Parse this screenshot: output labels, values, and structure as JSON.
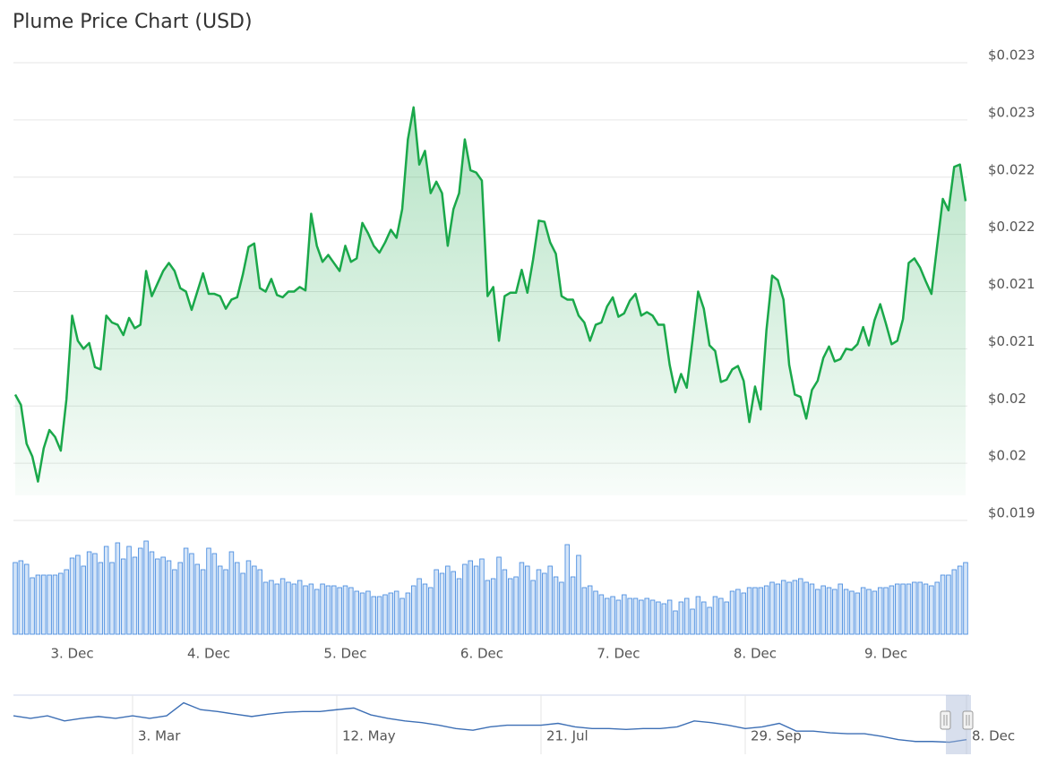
{
  "chart_data": [
    {
      "type": "area",
      "title": "Plume Price Chart (USD)",
      "color": "#1aa84a",
      "grid": true,
      "ylim": [
        0.019,
        0.023
      ],
      "yticks": [
        {
          "value": 0.019,
          "label": "$0.019"
        },
        {
          "value": 0.0195,
          "label": "$0.02"
        },
        {
          "value": 0.02,
          "label": "$0.02"
        },
        {
          "value": 0.0205,
          "label": "$0.021"
        },
        {
          "value": 0.021,
          "label": "$0.021"
        },
        {
          "value": 0.0215,
          "label": "$0.022"
        },
        {
          "value": 0.022,
          "label": "$0.022"
        },
        {
          "value": 0.0225,
          "label": "$0.023"
        },
        {
          "value": 0.023,
          "label": "$0.023"
        }
      ],
      "categories": [
        null,
        null,
        null,
        null,
        null,
        null,
        null,
        null,
        null,
        null,
        "3. Dec",
        null,
        null,
        null,
        null,
        null,
        null,
        null,
        null,
        null,
        null,
        null,
        null,
        null,
        null,
        null,
        null,
        null,
        null,
        null,
        null,
        null,
        null,
        null,
        "4. Dec",
        null,
        null,
        null,
        null,
        null,
        null,
        null,
        null,
        null,
        null,
        null,
        null,
        null,
        null,
        null,
        null,
        null,
        null,
        null,
        null,
        null,
        null,
        null,
        "5. Dec",
        null,
        null,
        null,
        null,
        null,
        null,
        null,
        null,
        null,
        null,
        null,
        null,
        null,
        null,
        null,
        null,
        null,
        null,
        null,
        null,
        null,
        null,
        null,
        "6. Dec",
        null,
        null,
        null,
        null,
        null,
        null,
        null,
        null,
        null,
        null,
        null,
        null,
        null,
        null,
        null,
        null,
        null,
        null,
        null,
        null,
        null,
        null,
        null,
        "7. Dec",
        null,
        null,
        null,
        null,
        null,
        null,
        null,
        null,
        null,
        null,
        null,
        null,
        null,
        null,
        null,
        null,
        null,
        null,
        null,
        null,
        null,
        null,
        null,
        "8. Dec",
        null,
        null,
        null,
        null,
        null,
        null,
        null,
        null,
        null,
        null,
        null,
        null,
        null,
        null,
        null,
        null,
        null,
        null,
        null,
        null,
        null,
        null,
        "9. Dec",
        null,
        null,
        null,
        null,
        null,
        null,
        null,
        null,
        null,
        null,
        null,
        null,
        null,
        null
      ],
      "values": [
        0.0201,
        0.02001,
        0.01967,
        0.01956,
        0.01934,
        0.01963,
        0.01979,
        0.01973,
        0.01961,
        0.02006,
        0.02079,
        0.02057,
        0.0205,
        0.02055,
        0.02034,
        0.02032,
        0.02079,
        0.02073,
        0.02071,
        0.02062,
        0.02077,
        0.02068,
        0.02071,
        0.02118,
        0.02096,
        0.02107,
        0.02118,
        0.02125,
        0.02118,
        0.02103,
        0.021,
        0.02084,
        0.021,
        0.02116,
        0.02098,
        0.02098,
        0.02096,
        0.02085,
        0.02093,
        0.02095,
        0.02115,
        0.02139,
        0.02142,
        0.02103,
        0.021,
        0.02111,
        0.02097,
        0.02095,
        0.021,
        0.021,
        0.02104,
        0.02101,
        0.02168,
        0.0214,
        0.02126,
        0.02132,
        0.02125,
        0.02118,
        0.0214,
        0.02126,
        0.02129,
        0.0216,
        0.02151,
        0.0214,
        0.02134,
        0.02143,
        0.02154,
        0.02147,
        0.02172,
        0.02233,
        0.02261,
        0.02211,
        0.02223,
        0.02186,
        0.02196,
        0.02186,
        0.0214,
        0.02172,
        0.02186,
        0.02233,
        0.02206,
        0.02204,
        0.02197,
        0.02096,
        0.02104,
        0.02057,
        0.02096,
        0.02099,
        0.02099,
        0.02119,
        0.02099,
        0.02128,
        0.02162,
        0.02161,
        0.02143,
        0.02133,
        0.02096,
        0.02093,
        0.02093,
        0.02079,
        0.02073,
        0.02057,
        0.02071,
        0.02073,
        0.02087,
        0.02095,
        0.02078,
        0.02081,
        0.02092,
        0.02098,
        0.02079,
        0.02082,
        0.02079,
        0.02071,
        0.02071,
        0.02036,
        0.02012,
        0.02028,
        0.02016,
        0.02057,
        0.021,
        0.02085,
        0.02053,
        0.02048,
        0.02021,
        0.02023,
        0.02032,
        0.02035,
        0.02022,
        0.01986,
        0.02017,
        0.01997,
        0.02066,
        0.02114,
        0.0211,
        0.02093,
        0.02036,
        0.0201,
        0.02008,
        0.01989,
        0.02014,
        0.02022,
        0.02042,
        0.02052,
        0.02039,
        0.02041,
        0.0205,
        0.02049,
        0.02054,
        0.02069,
        0.02053,
        0.02075,
        0.02089,
        0.02072,
        0.02054,
        0.02057,
        0.02076,
        0.02125,
        0.02129,
        0.02121,
        0.02109,
        0.02098,
        0.0214,
        0.02181,
        0.02171,
        0.02209,
        0.02211,
        0.02179
      ]
    },
    {
      "type": "bar",
      "color": "#4d8fe0",
      "ylim": [
        0,
        110
      ],
      "values": [
        80,
        82,
        78,
        63,
        66,
        66,
        66,
        66,
        68,
        72,
        85,
        88,
        76,
        92,
        90,
        80,
        98,
        80,
        102,
        84,
        98,
        86,
        96,
        104,
        92,
        84,
        86,
        82,
        72,
        80,
        96,
        90,
        78,
        72,
        96,
        90,
        76,
        72,
        92,
        80,
        68,
        82,
        76,
        72,
        58,
        60,
        56,
        62,
        58,
        56,
        60,
        54,
        56,
        50,
        56,
        54,
        54,
        52,
        54,
        52,
        48,
        46,
        48,
        42,
        42,
        44,
        46,
        48,
        40,
        46,
        54,
        62,
        56,
        52,
        72,
        68,
        76,
        70,
        62,
        78,
        82,
        76,
        84,
        60,
        62,
        86,
        72,
        62,
        64,
        80,
        76,
        60,
        72,
        68,
        76,
        64,
        58,
        100,
        64,
        88,
        52,
        54,
        48,
        44,
        40,
        42,
        38,
        44,
        40,
        40,
        38,
        40,
        38,
        36,
        34,
        38,
        26,
        36,
        40,
        28,
        42,
        36,
        30,
        42,
        40,
        36,
        48,
        50,
        46,
        52,
        52,
        52,
        54,
        58,
        56,
        60,
        58,
        60,
        62,
        58,
        56,
        50,
        54,
        52,
        50,
        56,
        50,
        48,
        46,
        52,
        50,
        48,
        52,
        52,
        54,
        56,
        56,
        56,
        58,
        58,
        56,
        54,
        58,
        66,
        66,
        72,
        76,
        80
      ]
    },
    {
      "type": "line",
      "color": "#3d6fb5",
      "ylim": [
        0.015,
        0.046
      ],
      "categories": [
        null,
        null,
        null,
        null,
        null,
        null,
        null,
        "3. Mar",
        null,
        null,
        null,
        null,
        null,
        null,
        null,
        null,
        null,
        null,
        null,
        "12. May",
        null,
        null,
        null,
        null,
        null,
        null,
        null,
        null,
        null,
        null,
        null,
        "21. Jul",
        null,
        null,
        null,
        null,
        null,
        null,
        null,
        null,
        null,
        null,
        null,
        "29. Sep",
        null,
        null,
        null,
        null,
        null,
        null,
        null,
        null,
        null,
        null,
        null,
        null,
        "8. Dec"
      ],
      "values": [
        0.0358,
        0.0344,
        0.0358,
        0.033,
        0.0344,
        0.0354,
        0.0344,
        0.0358,
        0.0344,
        0.0358,
        0.0428,
        0.0391,
        0.0381,
        0.0367,
        0.0354,
        0.0367,
        0.0377,
        0.0381,
        0.0381,
        0.0391,
        0.04,
        0.0363,
        0.0344,
        0.033,
        0.0321,
        0.0307,
        0.0289,
        0.028,
        0.0298,
        0.0307,
        0.0307,
        0.0307,
        0.0317,
        0.0298,
        0.0289,
        0.0289,
        0.0284,
        0.0289,
        0.0289,
        0.0298,
        0.033,
        0.0321,
        0.0307,
        0.0289,
        0.0298,
        0.0317,
        0.0275,
        0.0275,
        0.0266,
        0.0261,
        0.0261,
        0.0247,
        0.0229,
        0.0219,
        0.0219,
        0.0215,
        0.0229
      ]
    }
  ]
}
